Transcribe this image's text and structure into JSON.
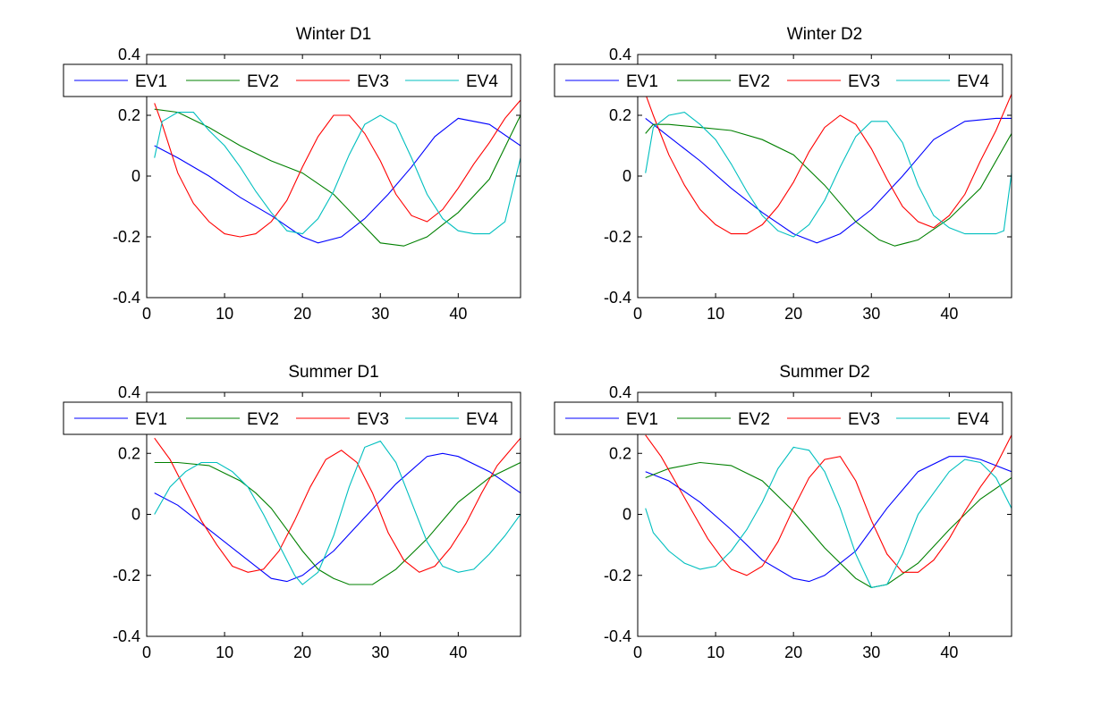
{
  "figure": {
    "background": "#ffffff",
    "series_colors": {
      "EV1": "#0000ff",
      "EV2": "#008000",
      "EV3": "#ff0000",
      "EV4": "#00bfbf"
    }
  },
  "chart_data": [
    {
      "type": "line",
      "title": "Winter D1",
      "xlabel": "",
      "ylabel": "",
      "xlim": [
        0,
        48
      ],
      "ylim": [
        -0.4,
        0.4
      ],
      "xticks": [
        "0",
        "10",
        "20",
        "30",
        "40"
      ],
      "yticks": [
        "-0.4",
        "-0.2",
        "0",
        "0.2",
        "0.4"
      ],
      "grid": false,
      "legend": "top, horizontal",
      "series": [
        {
          "name": "EV1",
          "color": "#0000ff",
          "x": [
            1,
            4,
            8,
            12,
            16,
            20,
            22,
            25,
            28,
            31,
            34,
            37,
            40,
            44,
            48
          ],
          "y": [
            0.1,
            0.06,
            0.0,
            -0.07,
            -0.13,
            -0.2,
            -0.22,
            -0.2,
            -0.14,
            -0.06,
            0.03,
            0.13,
            0.19,
            0.17,
            0.1
          ]
        },
        {
          "name": "EV2",
          "color": "#008000",
          "x": [
            1,
            4,
            8,
            12,
            16,
            20,
            24,
            27,
            30,
            33,
            36,
            40,
            44,
            48
          ],
          "y": [
            0.22,
            0.21,
            0.16,
            0.1,
            0.05,
            0.01,
            -0.06,
            -0.14,
            -0.22,
            -0.23,
            -0.2,
            -0.12,
            -0.01,
            0.2
          ]
        },
        {
          "name": "EV3",
          "color": "#ff0000",
          "x": [
            1,
            2,
            4,
            6,
            8,
            10,
            12,
            14,
            16,
            18,
            20,
            22,
            24,
            26,
            28,
            30,
            32,
            34,
            36,
            38,
            40,
            42,
            44,
            46,
            48
          ],
          "y": [
            0.24,
            0.17,
            0.01,
            -0.09,
            -0.15,
            -0.19,
            -0.2,
            -0.19,
            -0.15,
            -0.08,
            0.03,
            0.13,
            0.2,
            0.2,
            0.14,
            0.05,
            -0.06,
            -0.13,
            -0.15,
            -0.11,
            -0.04,
            0.04,
            0.11,
            0.19,
            0.25
          ]
        },
        {
          "name": "EV4",
          "color": "#00bfbf",
          "x": [
            1,
            2,
            4,
            6,
            8,
            10,
            12,
            14,
            16,
            18,
            20,
            22,
            24,
            26,
            28,
            30,
            32,
            34,
            36,
            38,
            40,
            42,
            44,
            46,
            48
          ],
          "y": [
            0.06,
            0.18,
            0.21,
            0.21,
            0.15,
            0.1,
            0.03,
            -0.05,
            -0.12,
            -0.18,
            -0.19,
            -0.14,
            -0.05,
            0.07,
            0.17,
            0.2,
            0.17,
            0.06,
            -0.06,
            -0.14,
            -0.18,
            -0.19,
            -0.19,
            -0.15,
            0.06
          ]
        }
      ]
    },
    {
      "type": "line",
      "title": "Winter D2",
      "xlabel": "",
      "ylabel": "",
      "xlim": [
        0,
        48
      ],
      "ylim": [
        -0.4,
        0.4
      ],
      "xticks": [
        "0",
        "10",
        "20",
        "30",
        "40"
      ],
      "yticks": [
        "-0.4",
        "-0.2",
        "0",
        "0.2",
        "0.4"
      ],
      "grid": false,
      "legend": "top, horizontal",
      "series": [
        {
          "name": "EV1",
          "color": "#0000ff",
          "x": [
            1,
            4,
            8,
            12,
            16,
            20,
            23,
            26,
            30,
            34,
            38,
            42,
            46,
            48
          ],
          "y": [
            0.19,
            0.13,
            0.05,
            -0.04,
            -0.12,
            -0.19,
            -0.22,
            -0.19,
            -0.11,
            0.0,
            0.12,
            0.18,
            0.19,
            0.19
          ]
        },
        {
          "name": "EV2",
          "color": "#008000",
          "x": [
            1,
            2,
            4,
            8,
            12,
            16,
            20,
            24,
            28,
            31,
            33,
            36,
            40,
            44,
            48
          ],
          "y": [
            0.14,
            0.17,
            0.17,
            0.16,
            0.15,
            0.12,
            0.07,
            -0.03,
            -0.15,
            -0.21,
            -0.23,
            -0.21,
            -0.14,
            -0.04,
            0.14
          ]
        },
        {
          "name": "EV3",
          "color": "#ff0000",
          "x": [
            1,
            2,
            4,
            6,
            8,
            10,
            12,
            14,
            16,
            18,
            20,
            22,
            24,
            26,
            28,
            30,
            32,
            34,
            36,
            38,
            40,
            42,
            44,
            46,
            48
          ],
          "y": [
            0.27,
            0.2,
            0.07,
            -0.03,
            -0.11,
            -0.16,
            -0.19,
            -0.19,
            -0.16,
            -0.1,
            -0.02,
            0.08,
            0.16,
            0.2,
            0.17,
            0.09,
            -0.01,
            -0.1,
            -0.15,
            -0.17,
            -0.13,
            -0.06,
            0.05,
            0.15,
            0.27
          ]
        },
        {
          "name": "EV4",
          "color": "#00bfbf",
          "x": [
            1,
            2,
            4,
            6,
            8,
            10,
            12,
            14,
            16,
            18,
            20,
            22,
            24,
            26,
            28,
            30,
            32,
            34,
            36,
            38,
            40,
            42,
            44,
            46,
            47,
            48
          ],
          "y": [
            0.01,
            0.16,
            0.2,
            0.21,
            0.17,
            0.12,
            0.04,
            -0.05,
            -0.13,
            -0.18,
            -0.2,
            -0.16,
            -0.08,
            0.03,
            0.13,
            0.18,
            0.18,
            0.11,
            -0.03,
            -0.13,
            -0.17,
            -0.19,
            -0.19,
            -0.19,
            -0.18,
            0.01
          ]
        }
      ]
    },
    {
      "type": "line",
      "title": "Summer D1",
      "xlabel": "",
      "ylabel": "",
      "xlim": [
        0,
        48
      ],
      "ylim": [
        -0.4,
        0.4
      ],
      "xticks": [
        "0",
        "10",
        "20",
        "30",
        "40"
      ],
      "yticks": [
        "-0.4",
        "-0.2",
        "0",
        "0.2",
        "0.4"
      ],
      "grid": false,
      "legend": "top, horizontal",
      "series": [
        {
          "name": "EV1",
          "color": "#0000ff",
          "x": [
            1,
            4,
            8,
            12,
            16,
            18,
            20,
            24,
            28,
            32,
            36,
            38,
            40,
            44,
            48
          ],
          "y": [
            0.07,
            0.03,
            -0.05,
            -0.13,
            -0.21,
            -0.22,
            -0.2,
            -0.12,
            -0.01,
            0.1,
            0.19,
            0.2,
            0.19,
            0.14,
            0.07
          ]
        },
        {
          "name": "EV2",
          "color": "#008000",
          "x": [
            1,
            4,
            8,
            12,
            14,
            16,
            18,
            20,
            22,
            24,
            26,
            29,
            32,
            36,
            40,
            44,
            48
          ],
          "y": [
            0.17,
            0.17,
            0.16,
            0.11,
            0.07,
            0.02,
            -0.05,
            -0.12,
            -0.18,
            -0.21,
            -0.23,
            -0.23,
            -0.18,
            -0.08,
            0.04,
            0.12,
            0.17
          ]
        },
        {
          "name": "EV3",
          "color": "#ff0000",
          "x": [
            1,
            3,
            5,
            7,
            9,
            11,
            13,
            15,
            17,
            19,
            21,
            23,
            25,
            27,
            29,
            31,
            33,
            35,
            37,
            39,
            41,
            43,
            45,
            48
          ],
          "y": [
            0.25,
            0.18,
            0.08,
            -0.02,
            -0.1,
            -0.17,
            -0.19,
            -0.18,
            -0.12,
            -0.02,
            0.09,
            0.18,
            0.21,
            0.17,
            0.07,
            -0.06,
            -0.15,
            -0.19,
            -0.17,
            -0.11,
            -0.03,
            0.07,
            0.16,
            0.25
          ]
        },
        {
          "name": "EV4",
          "color": "#00bfbf",
          "x": [
            1,
            3,
            5,
            7,
            9,
            11,
            13,
            15,
            17,
            19,
            20,
            22,
            24,
            26,
            28,
            30,
            32,
            34,
            36,
            38,
            40,
            42,
            44,
            46,
            48
          ],
          "y": [
            0.0,
            0.09,
            0.14,
            0.17,
            0.17,
            0.14,
            0.09,
            0.0,
            -0.1,
            -0.2,
            -0.23,
            -0.19,
            -0.07,
            0.09,
            0.22,
            0.24,
            0.17,
            0.04,
            -0.09,
            -0.17,
            -0.19,
            -0.18,
            -0.13,
            -0.07,
            0.0
          ]
        }
      ]
    },
    {
      "type": "line",
      "title": "Summer D2",
      "xlabel": "",
      "ylabel": "",
      "xlim": [
        0,
        48
      ],
      "ylim": [
        -0.4,
        0.4
      ],
      "xticks": [
        "0",
        "10",
        "20",
        "30",
        "40"
      ],
      "yticks": [
        "-0.4",
        "-0.2",
        "0",
        "0.2",
        "0.4"
      ],
      "grid": false,
      "legend": "top, horizontal",
      "series": [
        {
          "name": "EV1",
          "color": "#0000ff",
          "x": [
            1,
            4,
            8,
            12,
            16,
            20,
            22,
            24,
            28,
            32,
            36,
            40,
            42,
            44,
            48
          ],
          "y": [
            0.14,
            0.11,
            0.04,
            -0.05,
            -0.15,
            -0.21,
            -0.22,
            -0.2,
            -0.12,
            0.02,
            0.14,
            0.19,
            0.19,
            0.18,
            0.14
          ]
        },
        {
          "name": "EV2",
          "color": "#008000",
          "x": [
            1,
            4,
            8,
            12,
            16,
            20,
            24,
            28,
            30,
            32,
            36,
            40,
            44,
            48
          ],
          "y": [
            0.12,
            0.15,
            0.17,
            0.16,
            0.11,
            0.01,
            -0.11,
            -0.21,
            -0.24,
            -0.23,
            -0.16,
            -0.05,
            0.05,
            0.12
          ]
        },
        {
          "name": "EV3",
          "color": "#ff0000",
          "x": [
            1,
            3,
            5,
            7,
            9,
            11,
            12,
            14,
            16,
            18,
            20,
            22,
            24,
            26,
            28,
            30,
            32,
            34,
            36,
            38,
            40,
            42,
            44,
            46,
            48
          ],
          "y": [
            0.26,
            0.19,
            0.1,
            0.01,
            -0.08,
            -0.15,
            -0.18,
            -0.2,
            -0.17,
            -0.09,
            0.02,
            0.12,
            0.18,
            0.19,
            0.11,
            -0.02,
            -0.13,
            -0.19,
            -0.19,
            -0.15,
            -0.08,
            0.01,
            0.09,
            0.16,
            0.26
          ]
        },
        {
          "name": "EV4",
          "color": "#00bfbf",
          "x": [
            1,
            2,
            4,
            6,
            8,
            10,
            12,
            14,
            16,
            18,
            20,
            22,
            24,
            26,
            28,
            30,
            32,
            34,
            36,
            38,
            40,
            42,
            44,
            46,
            48
          ],
          "y": [
            0.02,
            -0.06,
            -0.12,
            -0.16,
            -0.18,
            -0.17,
            -0.12,
            -0.05,
            0.04,
            0.15,
            0.22,
            0.21,
            0.14,
            0.02,
            -0.13,
            -0.24,
            -0.23,
            -0.13,
            0.0,
            0.07,
            0.14,
            0.18,
            0.17,
            0.12,
            0.02
          ]
        }
      ]
    }
  ]
}
